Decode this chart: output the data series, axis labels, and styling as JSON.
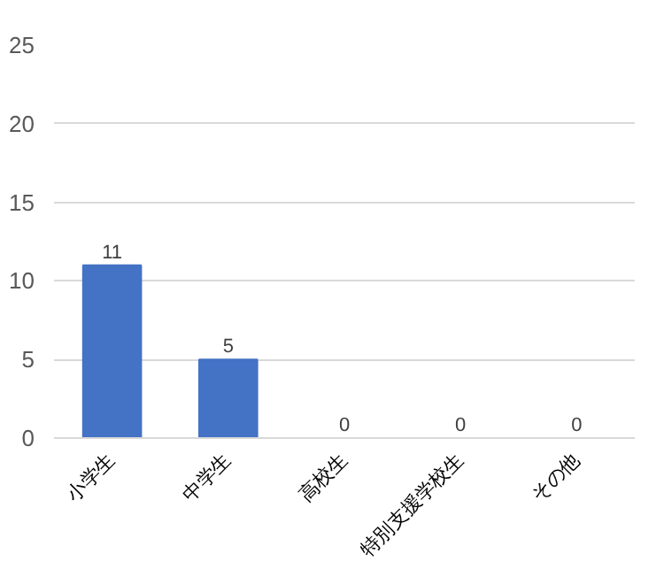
{
  "chart_data": {
    "type": "bar",
    "categories": [
      "小学生",
      "中学生",
      "高校生",
      "特別支援学校生",
      "その他"
    ],
    "values": [
      11,
      5,
      0,
      0,
      0
    ],
    "color": "#4472c4",
    "ylim": [
      0,
      25
    ],
    "yticks": [
      0,
      5,
      10,
      15,
      20,
      25
    ],
    "grid": "y",
    "data_labels": true
  }
}
